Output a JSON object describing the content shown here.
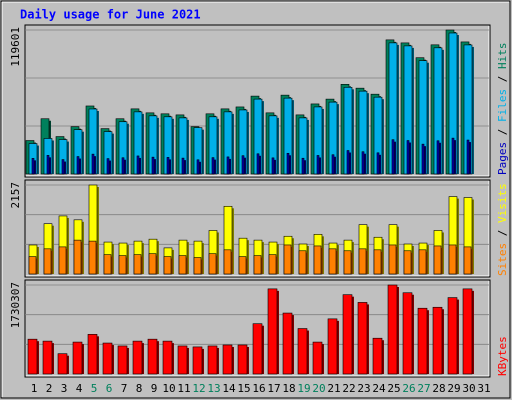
{
  "chart_data": [
    {
      "type": "bar",
      "title": "Daily usage for June 2021",
      "ylim": [
        0,
        119601
      ],
      "yticks": [
        119601
      ],
      "series": [
        {
          "name": "Hits",
          "color": "#00805c",
          "values": [
            27800,
            45900,
            31100,
            39300,
            56500,
            37700,
            45900,
            54100,
            50800,
            50000,
            49100,
            39300,
            50000,
            54100,
            55700,
            64700,
            50800,
            65500,
            49100,
            58200,
            62200,
            74500,
            71300,
            66300,
            111400,
            108900,
            96600,
            107300,
            119601,
            109700,
            null
          ]
        },
        {
          "name": "Files",
          "color": "#00b0e8",
          "values": [
            25300,
            29500,
            28600,
            36800,
            54000,
            35200,
            43400,
            51600,
            48300,
            47500,
            46600,
            38500,
            47500,
            51600,
            53200,
            62200,
            48300,
            63000,
            46600,
            55700,
            59700,
            72000,
            68800,
            63800,
            108900,
            106400,
            94100,
            104800,
            117100,
            107200,
            null
          ]
        },
        {
          "name": "Pages",
          "color": "#0000c0",
          "values": [
            13000,
            15500,
            12000,
            14500,
            16500,
            12800,
            13500,
            15000,
            14000,
            13800,
            13200,
            11800,
            13600,
            14200,
            15200,
            16800,
            13400,
            17200,
            13100,
            15400,
            16000,
            19500,
            18500,
            17600,
            28500,
            27800,
            24800,
            27600,
            29800,
            28200,
            null
          ]
        }
      ]
    },
    {
      "type": "bar",
      "ylim": [
        0,
        2157
      ],
      "yticks": [
        2157
      ],
      "series": [
        {
          "name": "Visits",
          "color": "#ffff00",
          "values": [
            703,
            1219,
            1407,
            1313,
            2157,
            774,
            750,
            797,
            844,
            633,
            821,
            797,
            1055,
            1641,
            868,
            821,
            774,
            915,
            727,
            961,
            750,
            821,
            1196,
            891,
            1196,
            727,
            750,
            1055,
            1876,
            1853,
            null
          ]
        },
        {
          "name": "Sites",
          "color": "#ff8000",
          "values": [
            422,
            610,
            657,
            821,
            797,
            469,
            446,
            469,
            492,
            422,
            446,
            399,
            492,
            586,
            422,
            446,
            469,
            704,
            563,
            680,
            610,
            563,
            610,
            586,
            704,
            563,
            586,
            680,
            704,
            657,
            null
          ]
        }
      ]
    },
    {
      "type": "bar",
      "categories": [
        "1",
        "2",
        "3",
        "4",
        "5",
        "6",
        "7",
        "8",
        "9",
        "10",
        "11",
        "12",
        "13",
        "14",
        "15",
        "16",
        "17",
        "18",
        "19",
        "20",
        "21",
        "22",
        "23",
        "24",
        "25",
        "26",
        "27",
        "28",
        "29",
        "30",
        "31"
      ],
      "ylim": [
        0,
        1730307
      ],
      "yticks": [
        1730307
      ],
      "series": [
        {
          "name": "KBytes",
          "color": "#ff0000",
          "values": [
            677000,
            639500,
            395000,
            620700,
            771100,
            601900,
            545400,
            639500,
            677100,
            639500,
            545400,
            526600,
            545400,
            564200,
            564200,
            978000,
            1655100,
            1184900,
            884000,
            620700,
            1072100,
            1542300,
            1391800,
            695900,
            1730307,
            1579900,
            1278900,
            1297800,
            1485800,
            1655100,
            null
          ]
        }
      ]
    }
  ]
}
